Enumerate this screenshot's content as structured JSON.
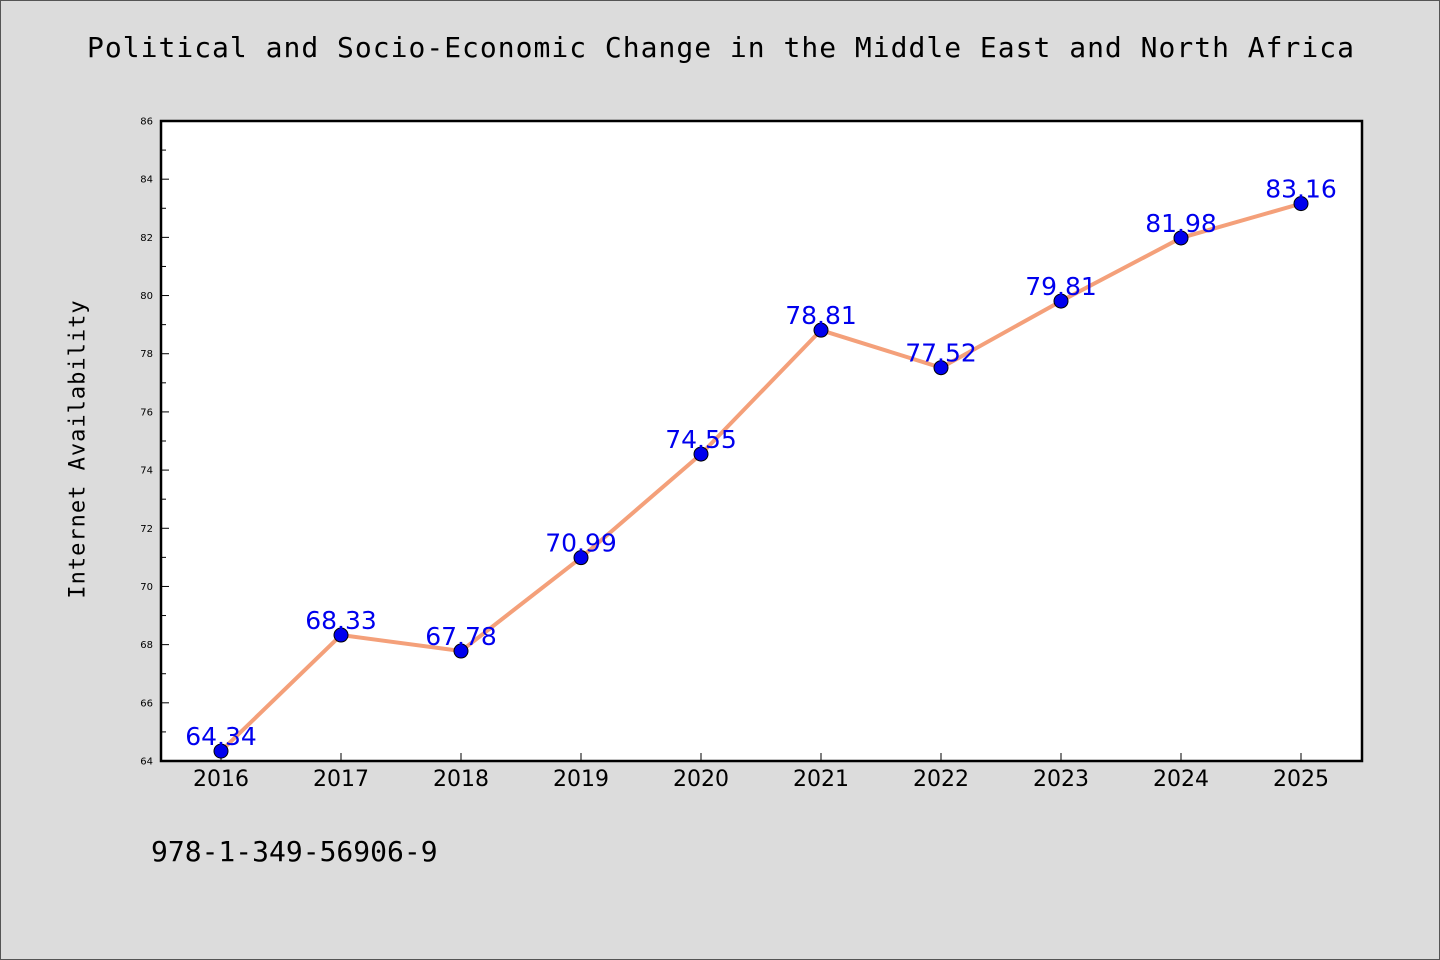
{
  "chart_data": {
    "type": "line",
    "title": "Political and Socio-Economic Change in the Middle East and North Africa",
    "xlabel": "",
    "ylabel": "Internet Availability",
    "categories": [
      "2016",
      "2017",
      "2018",
      "2019",
      "2020",
      "2021",
      "2022",
      "2023",
      "2024",
      "2025"
    ],
    "values": [
      64.34,
      68.33,
      67.78,
      70.99,
      74.55,
      78.81,
      77.52,
      79.81,
      81.98,
      83.16
    ],
    "data_labels": [
      "64.34",
      "68.33",
      "67.78",
      "70.99",
      "74.55",
      "78.81",
      "77.52",
      "79.81",
      "81.98",
      "83.16"
    ],
    "ylim": [
      64,
      86
    ],
    "yticks": [
      "64",
      "66",
      "68",
      "70",
      "72",
      "74",
      "76",
      "78",
      "80",
      "82",
      "84",
      "86"
    ],
    "grid": false,
    "line_color": "#f4a07a",
    "marker_color": "#0000ee",
    "label_color": "#0000ee"
  },
  "footer": {
    "isbn": "978-1-349-56906-9"
  }
}
